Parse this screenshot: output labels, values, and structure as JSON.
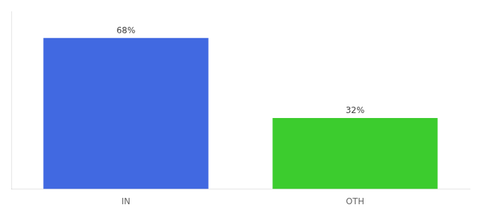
{
  "chart_data": {
    "type": "bar",
    "categories": [
      "IN",
      "OTH"
    ],
    "values": [
      68,
      32
    ],
    "colors": [
      "#4169e1",
      "#3ccc2e"
    ],
    "value_labels": [
      "68%",
      "32%"
    ],
    "data_labels": true,
    "ylim": [
      0,
      80
    ],
    "tick_labels": "x",
    "grid": false
  }
}
